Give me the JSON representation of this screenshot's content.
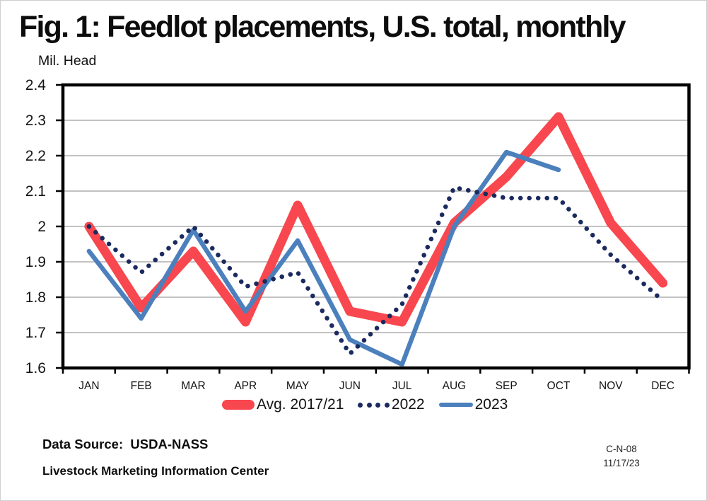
{
  "title": "Fig. 1: Feedlot placements, U.S. total, monthly",
  "y_axis_title": "Mil. Head",
  "footer": {
    "data_source": "Data Source:  USDA-NASS",
    "organization": "Livestock Marketing Information Center",
    "chart_id": "C-N-08",
    "date": "11/17/23"
  },
  "colors": {
    "avg_line": "#F8474E",
    "line_2022": "#1B2A5E",
    "line_2023": "#4C80BD",
    "gridline": "#9E9E9E",
    "axis": "#000000"
  },
  "chart_data": {
    "type": "line",
    "title": "Fig. 1: Feedlot placements, U.S. total, monthly",
    "xlabel": "",
    "ylabel": "Mil. Head",
    "ylim": [
      1.6,
      2.4
    ],
    "yticks": [
      "2.4",
      "2.3",
      "2.2",
      "2.1",
      "2",
      "1.9",
      "1.8",
      "1.7",
      "1.6"
    ],
    "grid": "horizontal",
    "grid_color": "#9E9E9E",
    "legend_position": "bottom",
    "categories": [
      "JAN",
      "FEB",
      "MAR",
      "APR",
      "MAY",
      "JUN",
      "JUL",
      "AUG",
      "SEP",
      "OCT",
      "NOV",
      "DEC"
    ],
    "series": [
      {
        "key": "avg-2017-21",
        "name": "Avg. 2017/21",
        "style": "thick",
        "color": "#F8474E",
        "values": [
          2.0,
          1.77,
          1.93,
          1.73,
          2.06,
          1.76,
          1.73,
          2.01,
          2.14,
          2.31,
          2.01,
          1.84
        ]
      },
      {
        "key": "2022",
        "name": "2022",
        "style": "dotted",
        "color": "#1B2A5E",
        "values": [
          2.0,
          1.87,
          2.0,
          1.83,
          1.87,
          1.64,
          1.78,
          2.11,
          2.08,
          2.08,
          1.92,
          1.79
        ]
      },
      {
        "key": "2023",
        "name": "2023",
        "style": "solid",
        "color": "#4C80BD",
        "values": [
          1.93,
          1.74,
          1.99,
          1.76,
          1.96,
          1.68,
          1.61,
          2.0,
          2.21,
          2.16,
          null,
          null
        ]
      }
    ]
  }
}
